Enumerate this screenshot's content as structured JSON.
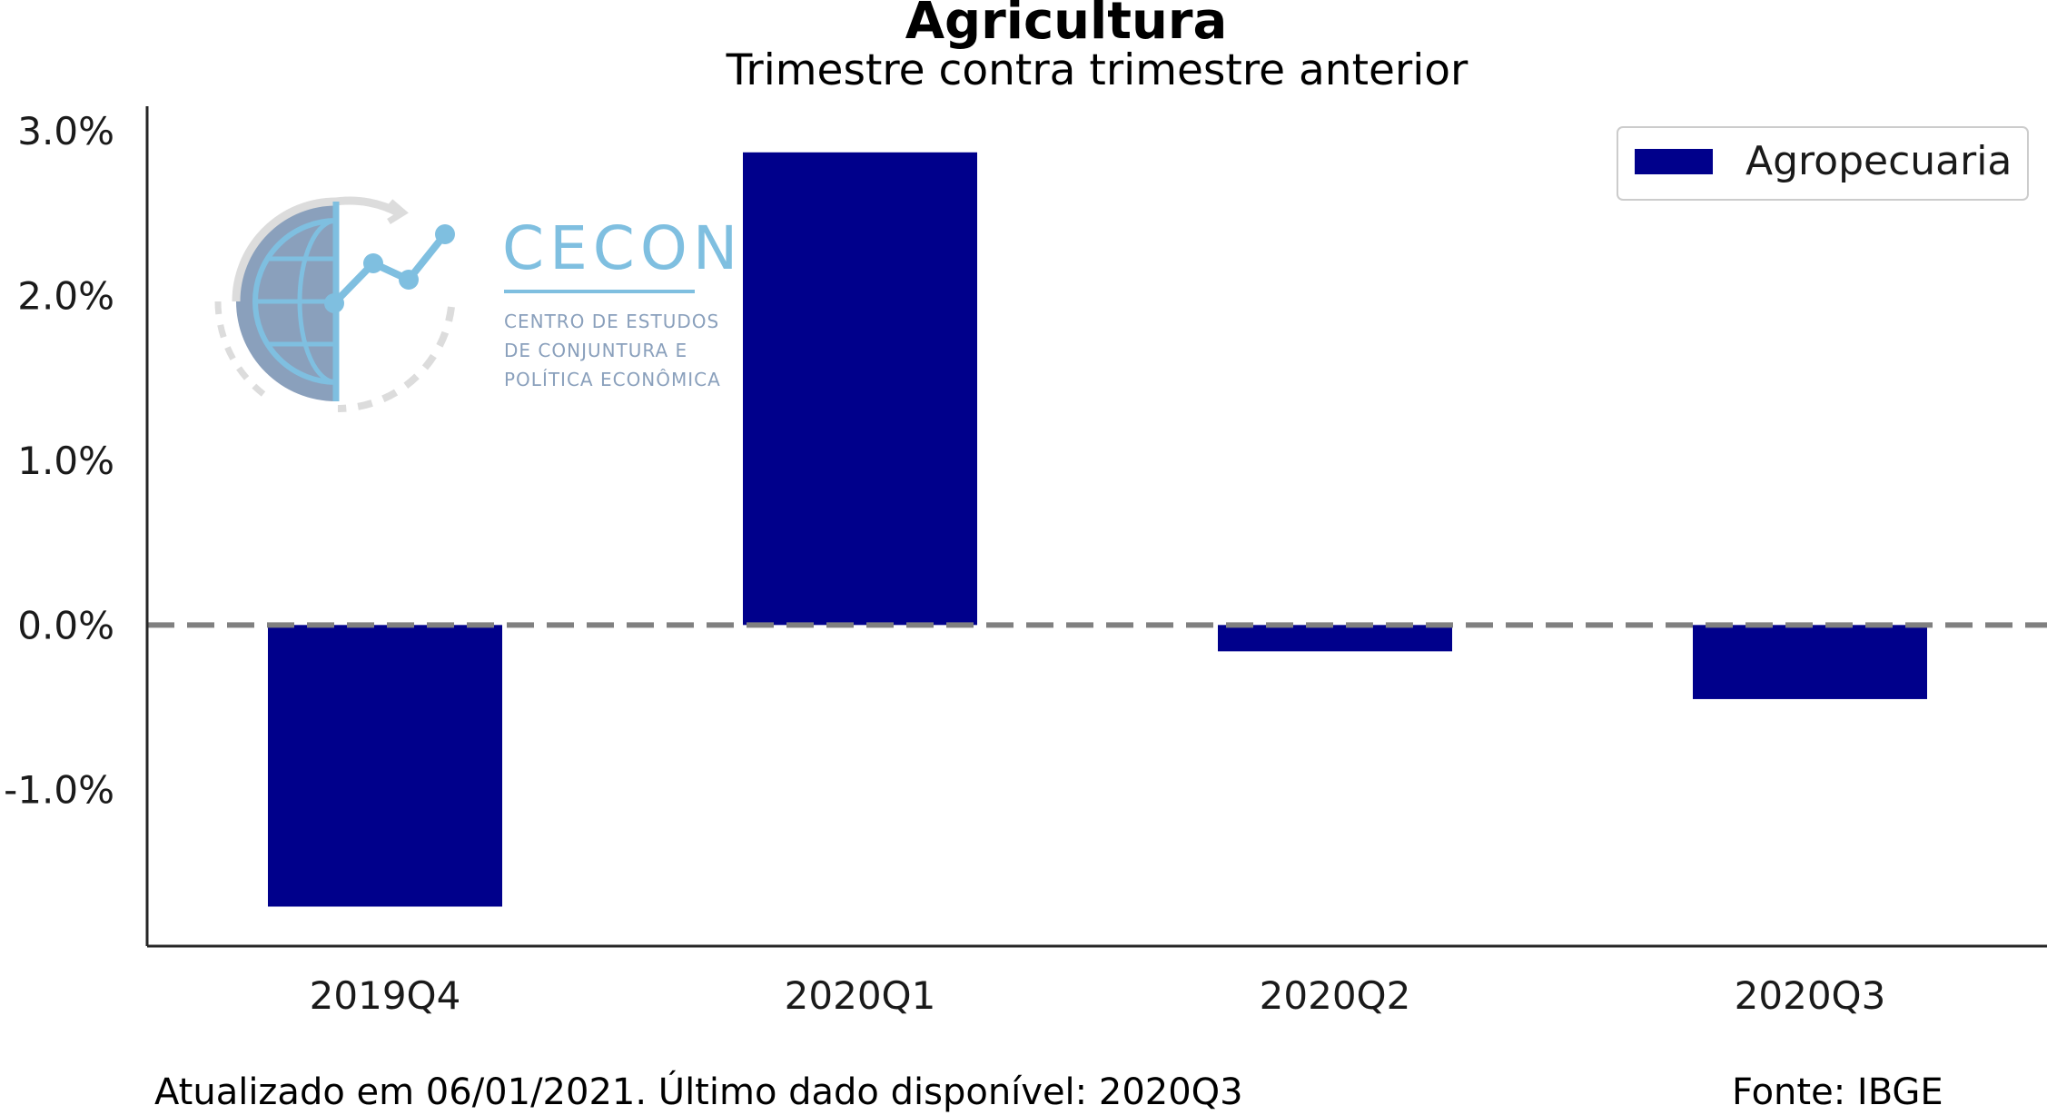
{
  "chart_data": {
    "type": "bar",
    "title": "Agricultura",
    "subtitle": "Trimestre contra trimestre anterior",
    "categories": [
      "2019Q4",
      "2020Q1",
      "2020Q2",
      "2020Q3"
    ],
    "series": [
      {
        "name": "Agropecuaria",
        "values": [
          -1.71,
          2.87,
          -0.16,
          -0.45
        ],
        "color": "#00008b"
      }
    ],
    "ylim": [
      -1.95,
      3.15
    ],
    "yticks": [
      3.0,
      2.0,
      1.0,
      0.0,
      -1.0
    ],
    "ytick_labels": [
      "3.0%",
      "2.0%",
      "1.0%",
      "0.0%",
      "-1.0%"
    ],
    "reference_line": {
      "y": 0,
      "style": "dashed",
      "color": "#808080"
    },
    "legend_placement": "top-right",
    "grid": false
  },
  "logo": {
    "name": "CECON",
    "lines": [
      "CENTRO DE ESTUDOS",
      "DE CONJUNTURA E",
      "POLÍTICA ECONÔMICA"
    ],
    "color": "#7fbfe0"
  },
  "footer": {
    "updated": "Atualizado em 06/01/2021. Último dado disponível: 2020Q3",
    "source": "Fonte: IBGE"
  }
}
